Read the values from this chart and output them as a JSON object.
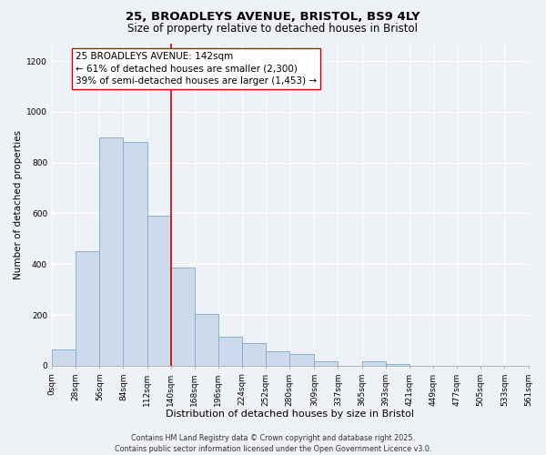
{
  "title": "25, BROADLEYS AVENUE, BRISTOL, BS9 4LY",
  "subtitle": "Size of property relative to detached houses in Bristol",
  "bar_values": [
    65,
    450,
    900,
    880,
    590,
    385,
    205,
    115,
    90,
    55,
    45,
    18,
    0,
    18,
    5,
    0,
    0,
    0,
    0,
    0
  ],
  "bin_edges": [
    0,
    28,
    56,
    84,
    112,
    140,
    168,
    196,
    224,
    252,
    280,
    309,
    337,
    365,
    393,
    421,
    449,
    477,
    505,
    533,
    561
  ],
  "bar_color": "#ccdaeb",
  "bar_edge_color": "#7aaac8",
  "vertical_line_x": 140,
  "vertical_line_color": "#cc0000",
  "annotation_text_line1": "25 BROADLEYS AVENUE: 142sqm",
  "annotation_text_line2": "← 61% of detached houses are smaller (2,300)",
  "annotation_text_line3": "39% of semi-detached houses are larger (1,453) →",
  "annotation_box_color": "#ffffff",
  "annotation_box_edgecolor": "#cc0000",
  "xlabel": "Distribution of detached houses by size in Bristol",
  "ylabel": "Number of detached properties",
  "ylim": [
    0,
    1270
  ],
  "yticks": [
    0,
    200,
    400,
    600,
    800,
    1000,
    1200
  ],
  "xtick_labels": [
    "0sqm",
    "28sqm",
    "56sqm",
    "84sqm",
    "112sqm",
    "140sqm",
    "168sqm",
    "196sqm",
    "224sqm",
    "252sqm",
    "280sqm",
    "309sqm",
    "337sqm",
    "365sqm",
    "393sqm",
    "421sqm",
    "449sqm",
    "477sqm",
    "505sqm",
    "533sqm",
    "561sqm"
  ],
  "background_color": "#eef2f7",
  "grid_color": "#ffffff",
  "footer_text": "Contains HM Land Registry data © Crown copyright and database right 2025.\nContains public sector information licensed under the Open Government Licence v3.0.",
  "title_fontsize": 9.5,
  "subtitle_fontsize": 8.5,
  "annotation_fontsize": 7.5,
  "xlabel_fontsize": 8,
  "ylabel_fontsize": 7.5,
  "tick_fontsize": 6.5,
  "footer_fontsize": 5.8
}
